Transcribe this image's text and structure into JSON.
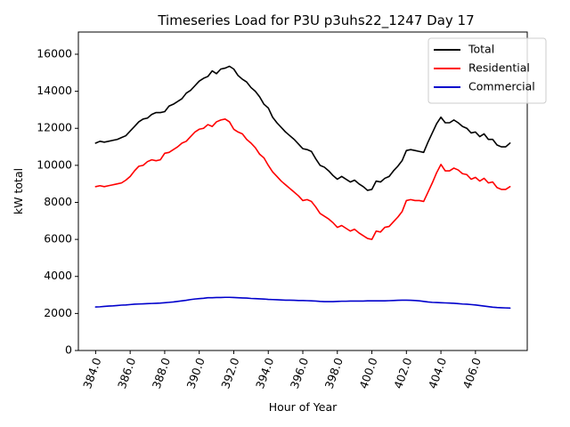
{
  "chart_data": {
    "type": "line",
    "title": "Timeseries Load for P3U p3uhs22_1247  Day 17",
    "xlabel": "Hour of Year",
    "ylabel": "kW total",
    "xlim": [
      383.0,
      409.0
    ],
    "ylim": [
      0,
      17200
    ],
    "x_ticks": [
      "384.0",
      "386.0",
      "388.0",
      "390.0",
      "392.0",
      "394.0",
      "396.0",
      "398.0",
      "400.0",
      "402.0",
      "404.0",
      "406.0"
    ],
    "x_tick_values": [
      384,
      386,
      388,
      390,
      392,
      394,
      396,
      398,
      400,
      402,
      404,
      406
    ],
    "y_ticks": [
      "0",
      "2000",
      "4000",
      "6000",
      "8000",
      "10000",
      "12000",
      "14000",
      "16000"
    ],
    "y_tick_values": [
      0,
      2000,
      4000,
      6000,
      8000,
      10000,
      12000,
      14000,
      16000
    ],
    "legend_position": "top-right",
    "x_start": 384.0,
    "x_step": 0.25,
    "series": [
      {
        "name": "Total",
        "color": "#000000",
        "values": [
          11200,
          11300,
          11250,
          11300,
          11350,
          11400,
          11500,
          11600,
          11850,
          12100,
          12350,
          12500,
          12550,
          12750,
          12850,
          12850,
          12900,
          13200,
          13300,
          13450,
          13600,
          13900,
          14050,
          14300,
          14550,
          14700,
          14800,
          15100,
          14950,
          15200,
          15250,
          15350,
          15200,
          14850,
          14650,
          14500,
          14200,
          14000,
          13700,
          13300,
          13100,
          12600,
          12300,
          12050,
          11800,
          11600,
          11400,
          11150,
          10900,
          10850,
          10750,
          10350,
          10000,
          9900,
          9700,
          9450,
          9250,
          9400,
          9250,
          9100,
          9200,
          9000,
          8850,
          8650,
          8700,
          9150,
          9100,
          9300,
          9400,
          9700,
          9950,
          10250,
          10800,
          10850,
          10800,
          10750,
          10700,
          11250,
          11750,
          12250,
          12600,
          12300,
          12300,
          12450,
          12300,
          12100,
          12000,
          11750,
          11800,
          11550,
          11700,
          11400,
          11400,
          11100,
          11000,
          11000,
          11200
        ]
      },
      {
        "name": "Residential",
        "color": "#ff0000",
        "values": [
          8850,
          8900,
          8850,
          8900,
          8950,
          9000,
          9050,
          9200,
          9400,
          9700,
          9950,
          10000,
          10200,
          10300,
          10250,
          10300,
          10650,
          10700,
          10850,
          11000,
          11200,
          11300,
          11550,
          11800,
          11950,
          12000,
          12200,
          12100,
          12350,
          12450,
          12500,
          12350,
          11950,
          11800,
          11700,
          11400,
          11200,
          10950,
          10600,
          10400,
          10000,
          9650,
          9400,
          9150,
          8950,
          8750,
          8550,
          8350,
          8100,
          8150,
          8050,
          7750,
          7400,
          7250,
          7100,
          6900,
          6650,
          6750,
          6600,
          6450,
          6550,
          6350,
          6200,
          6050,
          6000,
          6450,
          6400,
          6650,
          6700,
          6950,
          7200,
          7500,
          8100,
          8150,
          8100,
          8100,
          8050,
          8550,
          9050,
          9600,
          10050,
          9700,
          9700,
          9850,
          9750,
          9550,
          9500,
          9250,
          9350,
          9150,
          9300,
          9050,
          9100,
          8800,
          8700,
          8700,
          8850
        ]
      },
      {
        "name": "Commercial",
        "color": "#0000cc",
        "values": [
          2350,
          2360,
          2380,
          2400,
          2410,
          2430,
          2450,
          2460,
          2480,
          2500,
          2510,
          2520,
          2530,
          2540,
          2550,
          2560,
          2580,
          2600,
          2620,
          2650,
          2680,
          2710,
          2750,
          2780,
          2800,
          2820,
          2850,
          2850,
          2860,
          2860,
          2870,
          2870,
          2860,
          2850,
          2840,
          2830,
          2810,
          2800,
          2790,
          2780,
          2760,
          2750,
          2740,
          2730,
          2720,
          2720,
          2710,
          2700,
          2700,
          2690,
          2680,
          2670,
          2650,
          2640,
          2640,
          2640,
          2650,
          2660,
          2660,
          2670,
          2670,
          2670,
          2670,
          2680,
          2680,
          2680,
          2680,
          2680,
          2690,
          2700,
          2710,
          2720,
          2720,
          2710,
          2700,
          2680,
          2650,
          2620,
          2600,
          2590,
          2580,
          2570,
          2560,
          2550,
          2530,
          2510,
          2500,
          2480,
          2460,
          2430,
          2400,
          2370,
          2340,
          2320,
          2310,
          2300,
          2290
        ]
      }
    ]
  }
}
